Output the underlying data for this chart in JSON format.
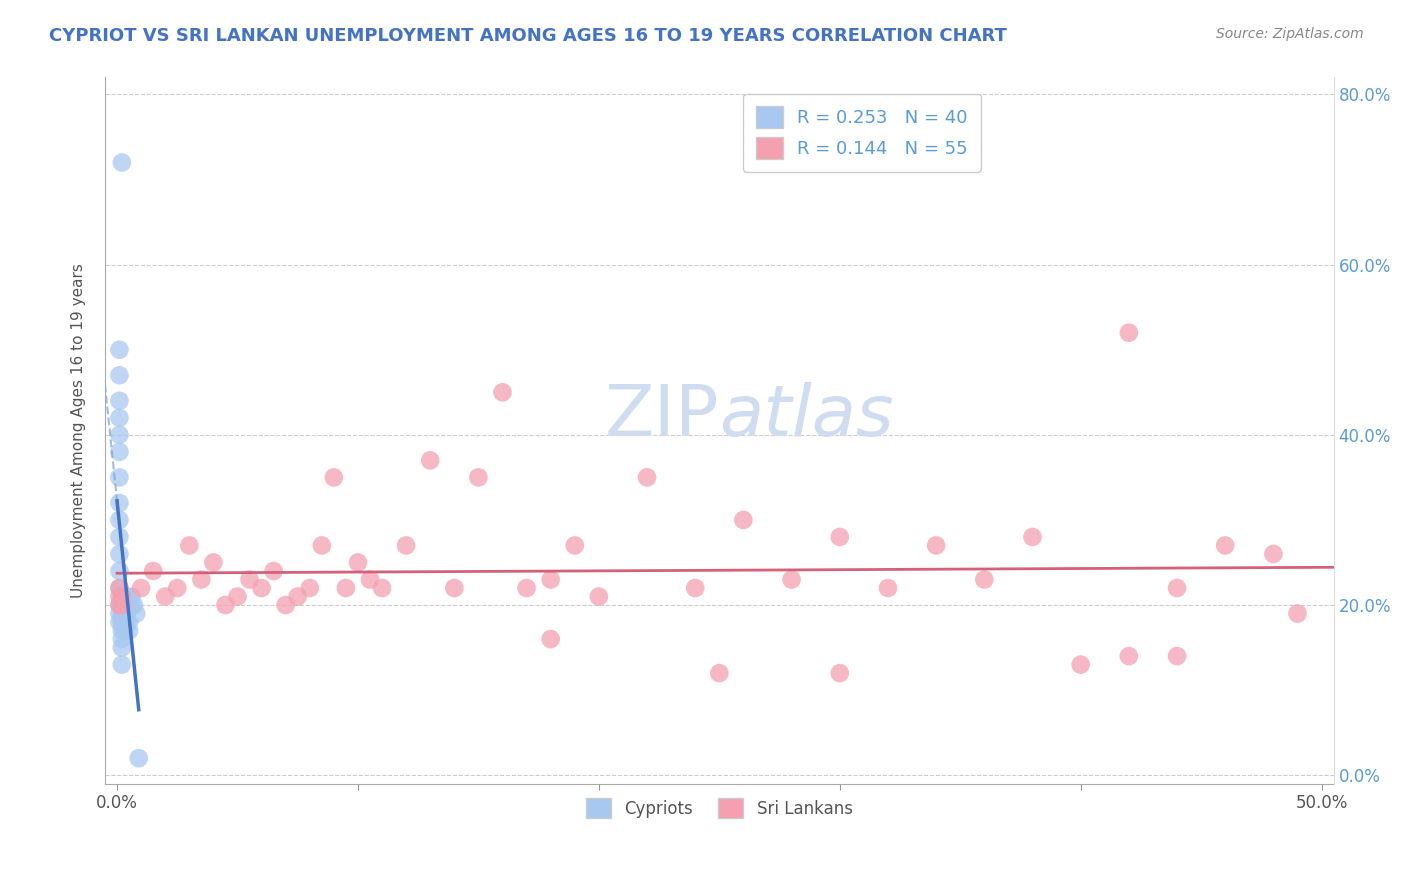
{
  "title": "CYPRIOT VS SRI LANKAN UNEMPLOYMENT AMONG AGES 16 TO 19 YEARS CORRELATION CHART",
  "source": "Source: ZipAtlas.com",
  "ylabel": "Unemployment Among Ages 16 to 19 years",
  "xlim": [
    -0.005,
    0.505
  ],
  "ylim": [
    -0.01,
    0.82
  ],
  "xticks": [
    0.0,
    0.1,
    0.2,
    0.3,
    0.4,
    0.5
  ],
  "xticklabels": [
    "0.0%",
    "",
    "",
    "",
    "",
    "50.0%"
  ],
  "yticks": [
    0.0,
    0.2,
    0.4,
    0.6,
    0.8
  ],
  "yticklabels_right": [
    "0.0%",
    "20.0%",
    "40.0%",
    "60.0%",
    "80.0%"
  ],
  "blue_R": 0.253,
  "blue_N": 40,
  "pink_R": 0.144,
  "pink_N": 55,
  "blue_color": "#A8C8F0",
  "pink_color": "#F4A0B0",
  "blue_line_color": "#4472C4",
  "blue_dash_color": "#88AADD",
  "pink_line_color": "#D4607A",
  "title_color": "#4472C4",
  "right_axis_color": "#5B9BD5",
  "watermark_color": "#D0DCF0",
  "blue_points_x": [
    0.002,
    0.001,
    0.001,
    0.001,
    0.001,
    0.001,
    0.001,
    0.001,
    0.001,
    0.001,
    0.001,
    0.001,
    0.001,
    0.001,
    0.001,
    0.001,
    0.001,
    0.002,
    0.002,
    0.002,
    0.002,
    0.002,
    0.002,
    0.002,
    0.002,
    0.003,
    0.003,
    0.003,
    0.003,
    0.003,
    0.004,
    0.004,
    0.004,
    0.005,
    0.005,
    0.006,
    0.006,
    0.007,
    0.008,
    0.009
  ],
  "blue_points_y": [
    0.72,
    0.5,
    0.47,
    0.44,
    0.42,
    0.4,
    0.38,
    0.35,
    0.32,
    0.3,
    0.28,
    0.26,
    0.24,
    0.22,
    0.2,
    0.19,
    0.18,
    0.21,
    0.2,
    0.19,
    0.18,
    0.17,
    0.16,
    0.15,
    0.13,
    0.21,
    0.2,
    0.19,
    0.18,
    0.17,
    0.21,
    0.2,
    0.19,
    0.18,
    0.17,
    0.21,
    0.2,
    0.2,
    0.19,
    0.02
  ],
  "pink_points_x": [
    0.001,
    0.001,
    0.001,
    0.002,
    0.002,
    0.01,
    0.015,
    0.02,
    0.025,
    0.03,
    0.035,
    0.04,
    0.045,
    0.05,
    0.055,
    0.06,
    0.065,
    0.07,
    0.075,
    0.08,
    0.085,
    0.09,
    0.095,
    0.1,
    0.105,
    0.11,
    0.12,
    0.13,
    0.14,
    0.15,
    0.16,
    0.17,
    0.18,
    0.19,
    0.2,
    0.22,
    0.24,
    0.26,
    0.28,
    0.3,
    0.32,
    0.34,
    0.36,
    0.38,
    0.4,
    0.42,
    0.44,
    0.46,
    0.48,
    0.49,
    0.42,
    0.44,
    0.3,
    0.25,
    0.18
  ],
  "pink_points_y": [
    0.22,
    0.21,
    0.2,
    0.21,
    0.2,
    0.22,
    0.24,
    0.21,
    0.22,
    0.27,
    0.23,
    0.25,
    0.2,
    0.21,
    0.23,
    0.22,
    0.24,
    0.2,
    0.21,
    0.22,
    0.27,
    0.35,
    0.22,
    0.25,
    0.23,
    0.22,
    0.27,
    0.37,
    0.22,
    0.35,
    0.45,
    0.22,
    0.23,
    0.27,
    0.21,
    0.35,
    0.22,
    0.3,
    0.23,
    0.28,
    0.22,
    0.27,
    0.23,
    0.28,
    0.13,
    0.52,
    0.22,
    0.27,
    0.26,
    0.19,
    0.14,
    0.14,
    0.12,
    0.12,
    0.16
  ]
}
